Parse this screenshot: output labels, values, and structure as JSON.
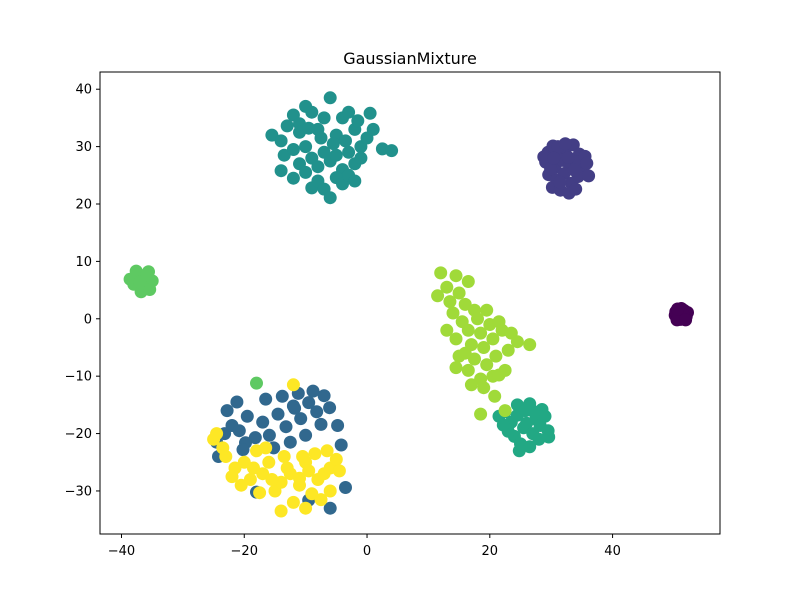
{
  "chart_data": {
    "type": "scatter",
    "title": "GaussianMixture",
    "xlabel": "",
    "ylabel": "",
    "xlim": [
      -43.5,
      57.5
    ],
    "ylim": [
      -37.5,
      43.0
    ],
    "xticks": [
      -40,
      -20,
      0,
      20,
      40
    ],
    "yticks": [
      -30,
      -20,
      -10,
      0,
      10,
      20,
      30,
      40
    ],
    "xtick_labels": [
      "−40",
      "−20",
      "0",
      "20",
      "40"
    ],
    "ytick_labels": [
      "−30",
      "−20",
      "−10",
      "0",
      "10",
      "20",
      "30",
      "40"
    ],
    "grid": false,
    "legend": "none",
    "series": [
      {
        "color": "#440154",
        "points": [
          [
            50.2,
            0.6
          ],
          [
            50.8,
            1.3
          ],
          [
            51.4,
            0.2
          ],
          [
            51.9,
            1.0
          ],
          [
            50.5,
            -0.2
          ],
          [
            51.2,
            1.8
          ],
          [
            52.0,
            0.4
          ],
          [
            50.9,
            0.9
          ],
          [
            51.6,
            1.5
          ],
          [
            50.3,
            1.2
          ],
          [
            52.2,
            1.1
          ],
          [
            51.1,
            -0.1
          ],
          [
            51.5,
            0.7
          ],
          [
            50.7,
            0.1
          ],
          [
            51.9,
            -0.2
          ],
          [
            50.6,
            1.7
          ]
        ]
      },
      {
        "color": "#433e85",
        "points": [
          [
            29.5,
            29.0
          ],
          [
            30.3,
            30.1
          ],
          [
            31.2,
            28.6
          ],
          [
            32.4,
            29.7
          ],
          [
            33.6,
            30.3
          ],
          [
            34.6,
            28.7
          ],
          [
            29.1,
            27.3
          ],
          [
            30.6,
            26.4
          ],
          [
            31.8,
            27.6
          ],
          [
            33.0,
            26.6
          ],
          [
            34.1,
            27.4
          ],
          [
            35.2,
            26.0
          ],
          [
            29.6,
            25.1
          ],
          [
            30.9,
            24.2
          ],
          [
            32.1,
            25.3
          ],
          [
            33.3,
            23.6
          ],
          [
            34.4,
            24.8
          ],
          [
            36.1,
            24.9
          ],
          [
            30.2,
            22.9
          ],
          [
            31.5,
            22.4
          ],
          [
            32.9,
            21.9
          ],
          [
            34.0,
            22.6
          ],
          [
            35.5,
            28.3
          ],
          [
            31.1,
            30.0
          ],
          [
            32.8,
            28.1
          ],
          [
            29.9,
            26.1
          ],
          [
            33.8,
            25.9
          ],
          [
            31.4,
            23.8
          ],
          [
            28.8,
            28.2
          ],
          [
            35.8,
            27.1
          ],
          [
            32.3,
            30.5
          ],
          [
            30.4,
            28.0
          ]
        ]
      },
      {
        "color": "#31688e",
        "points": [
          [
            -24.5,
            -21.5
          ],
          [
            -23.2,
            -20.0
          ],
          [
            -22.0,
            -18.6
          ],
          [
            -20.8,
            -19.5
          ],
          [
            -19.5,
            -17.0
          ],
          [
            -18.2,
            -20.7
          ],
          [
            -17.0,
            -18.0
          ],
          [
            -15.9,
            -20.3
          ],
          [
            -14.5,
            -16.6
          ],
          [
            -13.2,
            -18.8
          ],
          [
            -12.0,
            -15.2
          ],
          [
            -10.8,
            -17.4
          ],
          [
            -9.5,
            -14.6
          ],
          [
            -8.2,
            -16.2
          ],
          [
            -7.0,
            -13.4
          ],
          [
            -6.1,
            -15.5
          ],
          [
            -16.5,
            -14.0
          ],
          [
            -13.8,
            -13.5
          ],
          [
            -11.2,
            -13.0
          ],
          [
            -8.8,
            -12.6
          ],
          [
            -22.8,
            -16.0
          ],
          [
            -21.2,
            -14.5
          ],
          [
            -19.8,
            -21.6
          ],
          [
            -15.2,
            -22.5
          ],
          [
            -12.5,
            -21.5
          ],
          [
            -10.0,
            -20.3
          ],
          [
            -7.5,
            -18.4
          ],
          [
            -4.8,
            -18.6
          ],
          [
            -4.2,
            -22.0
          ],
          [
            -24.2,
            -24.0
          ],
          [
            -18.0,
            -30.2
          ],
          [
            -3.5,
            -29.4
          ],
          [
            -6.0,
            -33.0
          ],
          [
            -9.5,
            -31.6
          ],
          [
            -20.2,
            -22.8
          ],
          [
            -11.8,
            -15.6
          ]
        ]
      },
      {
        "color": "#21918c",
        "points": [
          [
            -15.5,
            32.0
          ],
          [
            -14.0,
            31.0
          ],
          [
            -13.0,
            33.6
          ],
          [
            -12.0,
            35.5
          ],
          [
            -11.0,
            34.0
          ],
          [
            -10.0,
            37.0
          ],
          [
            -9.0,
            36.0
          ],
          [
            -8.0,
            33.0
          ],
          [
            -7.0,
            35.0
          ],
          [
            -6.0,
            38.5
          ],
          [
            -5.0,
            32.0
          ],
          [
            -4.0,
            35.0
          ],
          [
            -3.0,
            36.0
          ],
          [
            -2.0,
            33.0
          ],
          [
            -1.0,
            30.0
          ],
          [
            0.0,
            31.5
          ],
          [
            1.0,
            33.0
          ],
          [
            2.5,
            29.6
          ],
          [
            4.0,
            29.3
          ],
          [
            -13.5,
            28.5
          ],
          [
            -12.0,
            29.5
          ],
          [
            -11.0,
            27.0
          ],
          [
            -10.0,
            30.0
          ],
          [
            -9.0,
            28.0
          ],
          [
            -8.0,
            26.5
          ],
          [
            -7.0,
            29.0
          ],
          [
            -6.0,
            27.5
          ],
          [
            -5.0,
            28.5
          ],
          [
            -4.0,
            26.0
          ],
          [
            -3.0,
            29.0
          ],
          [
            -2.0,
            27.0
          ],
          [
            -1.0,
            28.0
          ],
          [
            -14.0,
            25.8
          ],
          [
            -12.0,
            24.5
          ],
          [
            -10.0,
            25.5
          ],
          [
            -9.0,
            22.8
          ],
          [
            -8.0,
            24.0
          ],
          [
            -7.0,
            22.6
          ],
          [
            -6.0,
            21.1
          ],
          [
            -5.0,
            24.6
          ],
          [
            -4.0,
            23.5
          ],
          [
            -3.0,
            25.0
          ],
          [
            -2.0,
            24.0
          ],
          [
            -11.0,
            32.5
          ],
          [
            -9.5,
            33.2
          ],
          [
            -7.5,
            31.5
          ],
          [
            -5.5,
            30.5
          ],
          [
            -3.5,
            31.0
          ],
          [
            -1.5,
            34.5
          ],
          [
            0.5,
            35.8
          ]
        ]
      },
      {
        "color": "#22a884",
        "points": [
          [
            21.5,
            -17.0
          ],
          [
            22.5,
            -16.2
          ],
          [
            23.5,
            -18.0
          ],
          [
            24.5,
            -15.0
          ],
          [
            25.5,
            -19.0
          ],
          [
            26.5,
            -14.8
          ],
          [
            27.5,
            -17.5
          ],
          [
            28.5,
            -15.8
          ],
          [
            29.5,
            -19.5
          ],
          [
            24.0,
            -20.5
          ],
          [
            25.0,
            -21.8
          ],
          [
            26.0,
            -18.2
          ],
          [
            27.0,
            -20.0
          ],
          [
            28.0,
            -21.0
          ],
          [
            29.0,
            -17.0
          ],
          [
            23.0,
            -19.6
          ],
          [
            24.5,
            -16.8
          ],
          [
            26.5,
            -22.3
          ],
          [
            28.2,
            -18.6
          ],
          [
            25.8,
            -16.0
          ],
          [
            22.2,
            -18.5
          ],
          [
            27.2,
            -16.2
          ],
          [
            29.6,
            -20.6
          ],
          [
            24.8,
            -23.0
          ]
        ]
      },
      {
        "color": "#5ec962",
        "points": [
          [
            -38.0,
            6.0
          ],
          [
            -37.2,
            7.6
          ],
          [
            -36.4,
            5.4
          ],
          [
            -35.6,
            8.2
          ],
          [
            -35.0,
            6.6
          ],
          [
            -37.6,
            8.3
          ],
          [
            -36.8,
            4.7
          ],
          [
            -35.4,
            5.1
          ],
          [
            -38.6,
            6.9
          ],
          [
            -36.2,
            7.2
          ],
          [
            -37.0,
            6.4
          ],
          [
            -35.8,
            7.7
          ],
          [
            -18.0,
            -11.2
          ]
        ]
      },
      {
        "color": "#a0da39",
        "points": [
          [
            12.0,
            8.0
          ],
          [
            14.5,
            7.5
          ],
          [
            13.0,
            5.5
          ],
          [
            15.0,
            4.5
          ],
          [
            16.5,
            6.5
          ],
          [
            11.5,
            4.0
          ],
          [
            13.5,
            3.0
          ],
          [
            16.0,
            2.5
          ],
          [
            14.0,
            1.0
          ],
          [
            17.5,
            1.5
          ],
          [
            15.5,
            -0.5
          ],
          [
            18.0,
            0.0
          ],
          [
            19.5,
            1.5
          ],
          [
            16.5,
            -2.0
          ],
          [
            18.5,
            -2.5
          ],
          [
            20.0,
            -1.0
          ],
          [
            21.5,
            -0.5
          ],
          [
            14.5,
            -3.5
          ],
          [
            17.0,
            -4.5
          ],
          [
            19.0,
            -5.0
          ],
          [
            20.5,
            -3.5
          ],
          [
            22.0,
            -2.0
          ],
          [
            23.5,
            -2.5
          ],
          [
            24.5,
            -4.0
          ],
          [
            26.5,
            -4.5
          ],
          [
            15.0,
            -6.5
          ],
          [
            17.5,
            -7.0
          ],
          [
            19.5,
            -8.0
          ],
          [
            21.0,
            -6.5
          ],
          [
            23.0,
            -5.5
          ],
          [
            14.5,
            -8.5
          ],
          [
            16.5,
            -9.0
          ],
          [
            18.5,
            -10.5
          ],
          [
            20.5,
            -10.0
          ],
          [
            22.5,
            -9.0
          ],
          [
            17.0,
            -11.5
          ],
          [
            19.0,
            -12.0
          ],
          [
            20.8,
            -13.5
          ],
          [
            18.5,
            -16.6
          ],
          [
            22.5,
            -16.0
          ],
          [
            13.0,
            -2.0
          ],
          [
            16.0,
            -6.0
          ],
          [
            21.5,
            -9.8
          ]
        ]
      },
      {
        "color": "#fde725",
        "points": [
          [
            -25.0,
            -21.0
          ],
          [
            -24.5,
            -20.0
          ],
          [
            -23.0,
            -24.0
          ],
          [
            -21.5,
            -26.0
          ],
          [
            -20.0,
            -25.0
          ],
          [
            -19.0,
            -28.0
          ],
          [
            -18.0,
            -23.0
          ],
          [
            -17.0,
            -27.0
          ],
          [
            -16.0,
            -25.0
          ],
          [
            -15.0,
            -30.0
          ],
          [
            -14.0,
            -28.5
          ],
          [
            -13.0,
            -26.0
          ],
          [
            -12.0,
            -32.0
          ],
          [
            -11.0,
            -29.0
          ],
          [
            -10.0,
            -25.0
          ],
          [
            -9.0,
            -30.5
          ],
          [
            -8.0,
            -28.0
          ],
          [
            -7.0,
            -27.0
          ],
          [
            -6.0,
            -26.0
          ],
          [
            -5.0,
            -24.5
          ],
          [
            -4.5,
            -26.5
          ],
          [
            -10.5,
            -24.0
          ],
          [
            -8.5,
            -23.5
          ],
          [
            -6.5,
            -23.0
          ],
          [
            -14.0,
            -33.5
          ],
          [
            -10.0,
            -33.0
          ],
          [
            -7.5,
            -31.5
          ],
          [
            -6.0,
            -30.0
          ],
          [
            -17.5,
            -30.3
          ],
          [
            -20.5,
            -29.0
          ],
          [
            -22.0,
            -27.5
          ],
          [
            -12.5,
            -27.0
          ],
          [
            -16.5,
            -22.5
          ],
          [
            -13.5,
            -24.0
          ],
          [
            -11.0,
            -27.8
          ],
          [
            -9.5,
            -26.5
          ],
          [
            -23.5,
            -22.5
          ],
          [
            -18.5,
            -26.0
          ],
          [
            -15.5,
            -28.0
          ],
          [
            -12.0,
            -11.5
          ]
        ]
      }
    ]
  }
}
